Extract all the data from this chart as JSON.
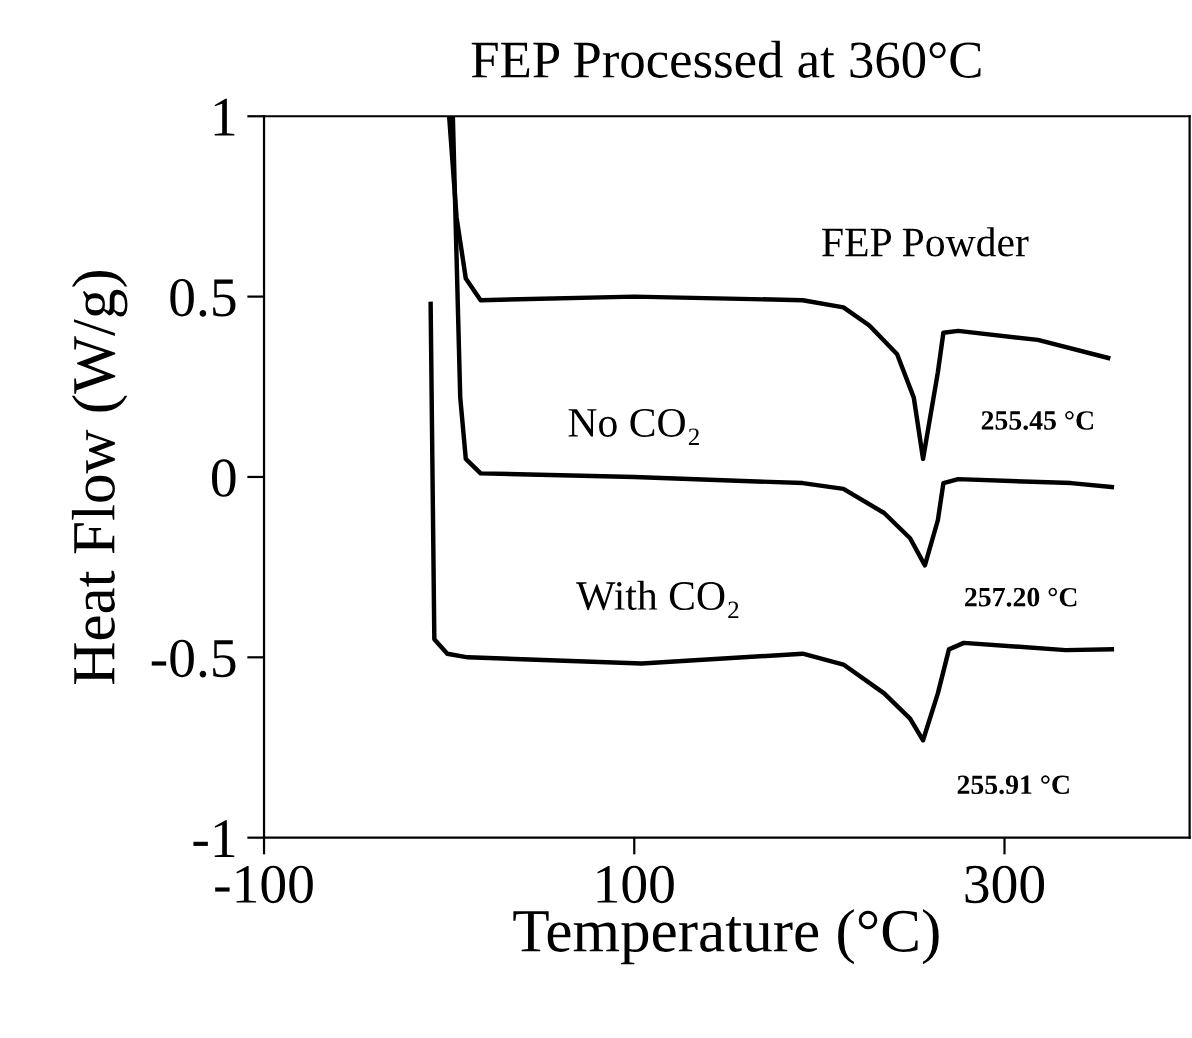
{
  "chart_data": {
    "type": "line",
    "title": "FEP Processed at 360°C",
    "xlabel": "Temperature (°C)",
    "ylabel": "Heat Flow (W/g)",
    "xlim": [
      -100,
      400
    ],
    "ylim": [
      -1,
      1
    ],
    "xticks": [
      -100,
      100,
      300
    ],
    "yticks": [
      -1,
      -0.5,
      0,
      0.5,
      1
    ],
    "grid": false,
    "legend": false,
    "marker": "none",
    "line_style": "solid",
    "series": [
      {
        "name": "FEP Powder",
        "color": "#000000",
        "x": [
          0,
          4,
          9,
          17,
          100,
          191,
          213,
          227,
          242,
          251,
          256,
          264,
          267,
          275,
          318,
          356
        ],
        "values": [
          1.0,
          0.72,
          0.55,
          0.49,
          0.5,
          0.49,
          0.47,
          0.42,
          0.34,
          0.22,
          0.05,
          0.29,
          0.4,
          0.405,
          0.38,
          0.33
        ]
      },
      {
        "name": "No CO₂",
        "color": "#000000",
        "x": [
          2,
          6,
          9,
          17,
          100,
          191,
          213,
          235,
          249,
          257,
          264,
          267,
          275,
          336,
          358
        ],
        "values": [
          1.0,
          0.22,
          0.05,
          0.01,
          0.0,
          -0.017,
          -0.033,
          -0.1,
          -0.17,
          -0.245,
          -0.12,
          -0.017,
          -0.006,
          -0.017,
          -0.028
        ]
      },
      {
        "name": "With CO₂",
        "color": "#000000",
        "x": [
          -10,
          -8,
          -1,
          10,
          104,
          191,
          213,
          235,
          249,
          256,
          264,
          270,
          278,
          333,
          358
        ],
        "values": [
          0.48,
          -0.45,
          -0.49,
          -0.5,
          -0.517,
          -0.49,
          -0.52,
          -0.6,
          -0.67,
          -0.73,
          -0.6,
          -0.478,
          -0.46,
          -0.48,
          -0.478
        ]
      }
    ],
    "annotations": [
      "255.45 °C",
      "257.20 °C",
      "255.91 °C"
    ]
  }
}
